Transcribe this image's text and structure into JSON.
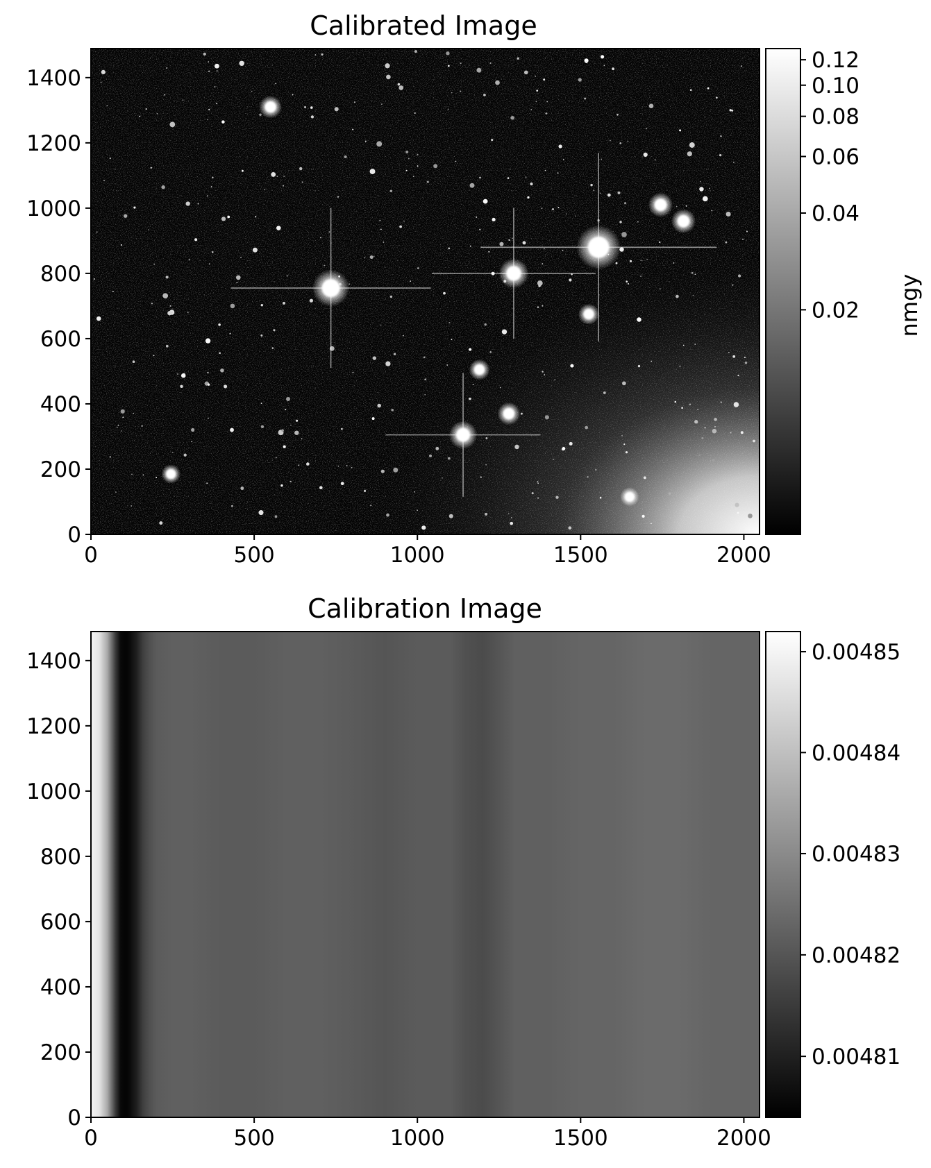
{
  "chart_data": [
    {
      "type": "heatmap",
      "title": "Calibrated Image",
      "xlabel": "",
      "ylabel": "",
      "xlim": [
        0,
        2048
      ],
      "ylim": [
        0,
        1489
      ],
      "x_ticks": [
        0,
        500,
        1000,
        1500,
        2000
      ],
      "x_tick_labels": [
        "0",
        "500",
        "1000",
        "1500",
        "2000"
      ],
      "y_ticks": [
        0,
        200,
        400,
        600,
        800,
        1000,
        1200,
        1400
      ],
      "y_tick_labels": [
        "0",
        "200",
        "400",
        "600",
        "800",
        "1000",
        "1200",
        "1400"
      ],
      "colormap": "gray",
      "color_scale": "log",
      "grid": false,
      "colorbar": {
        "label": "nmgy",
        "range": [
          0.004,
          0.13
        ],
        "ticks": [
          0.02,
          0.04,
          0.06,
          0.08,
          0.1,
          0.12
        ],
        "tick_labels": [
          "0.02",
          "0.04",
          "0.06",
          "0.08",
          "0.10",
          "0.12"
        ]
      },
      "features": {
        "background": "dark noisy sky with many faint point sources",
        "bright_stars": [
          {
            "x": 1555,
            "y": 880,
            "brightness": 1.0
          },
          {
            "x": 735,
            "y": 755,
            "brightness": 0.8
          },
          {
            "x": 1295,
            "y": 800,
            "brightness": 0.6
          },
          {
            "x": 1140,
            "y": 305,
            "brightness": 0.55
          },
          {
            "x": 1745,
            "y": 1010,
            "brightness": 0.45
          },
          {
            "x": 1815,
            "y": 960,
            "brightness": 0.45
          },
          {
            "x": 550,
            "y": 1310,
            "brightness": 0.4
          },
          {
            "x": 1280,
            "y": 370,
            "brightness": 0.4
          },
          {
            "x": 1190,
            "y": 505,
            "brightness": 0.35
          },
          {
            "x": 1525,
            "y": 675,
            "brightness": 0.35
          },
          {
            "x": 1650,
            "y": 115,
            "brightness": 0.3
          },
          {
            "x": 245,
            "y": 185,
            "brightness": 0.3
          }
        ],
        "glow": {
          "x": 2048,
          "y": 0,
          "description": "bright scattered-light gradient in lower right corner"
        }
      }
    },
    {
      "type": "heatmap",
      "title": "Calibration Image",
      "xlabel": "",
      "ylabel": "",
      "xlim": [
        0,
        2048
      ],
      "ylim": [
        0,
        1489
      ],
      "x_ticks": [
        0,
        500,
        1000,
        1500,
        2000
      ],
      "x_tick_labels": [
        "0",
        "500",
        "1000",
        "1500",
        "2000"
      ],
      "y_ticks": [
        0,
        200,
        400,
        600,
        800,
        1000,
        1200,
        1400
      ],
      "y_tick_labels": [
        "0",
        "200",
        "400",
        "600",
        "800",
        "1000",
        "1200",
        "1400"
      ],
      "colormap": "gray",
      "color_scale": "log",
      "grid": false,
      "colorbar": {
        "label": "",
        "range": [
          0.004804,
          0.004852
        ],
        "ticks": [
          0.00481,
          0.00482,
          0.00483,
          0.00484,
          0.00485
        ],
        "tick_labels": [
          "0.00481",
          "0.00482",
          "0.00483",
          "0.00484",
          "0.00485"
        ]
      },
      "column_profile": {
        "description": "values vary only with x (vertical stripes)",
        "x": [
          0,
          25,
          50,
          75,
          90,
          100,
          110,
          120,
          140,
          160,
          180,
          200,
          250,
          300,
          400,
          500,
          600,
          700,
          800,
          900,
          1000,
          1100,
          1150,
          1200,
          1250,
          1300,
          1400,
          1500,
          1600,
          1700,
          1800,
          1900,
          2000,
          2048
        ],
        "values": [
          0.00485,
          0.004847,
          0.004836,
          0.004815,
          0.004806,
          0.004805,
          0.004805,
          0.004806,
          0.00481,
          0.004816,
          0.004819,
          0.004821,
          0.004822,
          0.004822,
          0.004821,
          0.004821,
          0.004822,
          0.004822,
          0.004821,
          0.00482,
          0.004821,
          0.004821,
          0.004819,
          0.004818,
          0.00482,
          0.004822,
          0.004822,
          0.004823,
          0.004823,
          0.004824,
          0.004824,
          0.004823,
          0.004823,
          0.004823
        ]
      }
    }
  ]
}
